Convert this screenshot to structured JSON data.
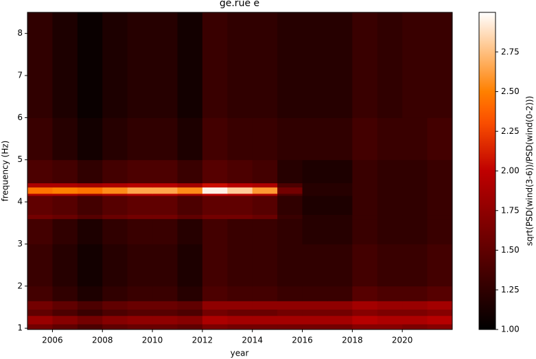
{
  "chart_data": {
    "type": "heatmap",
    "title": "ge.rue e",
    "x_label": "year",
    "y_label": "frequency (Hz)",
    "colorbar_label": "sqrt(PSD(wind(3-6))/PSD(wind(0-2)))",
    "colormap": "gist_heat",
    "x": [
      2005,
      2006,
      2007,
      2008,
      2009,
      2010,
      2011,
      2012,
      2013,
      2014,
      2015,
      2016,
      2017,
      2018,
      2019,
      2020,
      2021,
      2022
    ],
    "y": [
      0.97,
      1.1,
      1.3,
      1.45,
      1.65,
      2.0,
      3.0,
      3.6,
      3.7,
      4.15,
      4.2,
      4.35,
      4.45,
      5.0,
      6.0,
      8.5
    ],
    "z": [
      [
        1.6,
        1.5,
        1.4,
        1.5,
        1.55,
        1.55,
        1.5,
        1.65,
        1.6,
        1.6,
        1.6,
        1.6,
        1.6,
        1.7,
        1.7,
        1.65,
        1.7
      ],
      [
        1.8,
        1.7,
        1.6,
        1.7,
        1.75,
        1.75,
        1.7,
        1.9,
        1.85,
        1.85,
        1.85,
        1.85,
        1.85,
        1.95,
        1.9,
        1.9,
        1.95
      ],
      [
        1.5,
        1.4,
        1.3,
        1.4,
        1.45,
        1.45,
        1.4,
        1.6,
        1.55,
        1.55,
        1.6,
        1.6,
        1.6,
        1.7,
        1.65,
        1.65,
        1.7
      ],
      [
        1.6,
        1.5,
        1.4,
        1.5,
        1.55,
        1.55,
        1.5,
        1.75,
        1.75,
        1.75,
        1.75,
        1.75,
        1.75,
        1.85,
        1.8,
        1.8,
        1.85
      ],
      [
        1.35,
        1.25,
        1.15,
        1.25,
        1.3,
        1.3,
        1.2,
        1.4,
        1.35,
        1.35,
        1.3,
        1.3,
        1.3,
        1.45,
        1.4,
        1.4,
        1.45
      ],
      [
        1.3,
        1.2,
        1.1,
        1.2,
        1.25,
        1.25,
        1.15,
        1.35,
        1.3,
        1.3,
        1.25,
        1.25,
        1.25,
        1.35,
        1.3,
        1.3,
        1.35
      ],
      [
        1.35,
        1.25,
        1.15,
        1.25,
        1.3,
        1.3,
        1.2,
        1.35,
        1.3,
        1.3,
        1.25,
        1.2,
        1.2,
        1.3,
        1.25,
        1.25,
        1.3
      ],
      [
        1.6,
        1.55,
        1.45,
        1.55,
        1.6,
        1.6,
        1.5,
        1.6,
        1.6,
        1.55,
        1.3,
        1.2,
        1.2,
        1.3,
        1.25,
        1.25,
        1.3
      ],
      [
        1.5,
        1.45,
        1.35,
        1.45,
        1.5,
        1.5,
        1.4,
        1.5,
        1.5,
        1.45,
        1.25,
        1.15,
        1.15,
        1.3,
        1.25,
        1.25,
        1.3
      ],
      [
        1.9,
        1.9,
        1.8,
        1.9,
        1.95,
        1.95,
        1.85,
        2.0,
        1.95,
        1.9,
        1.4,
        1.2,
        1.2,
        1.3,
        1.25,
        1.25,
        1.3
      ],
      [
        2.45,
        2.5,
        2.45,
        2.55,
        2.65,
        2.65,
        2.55,
        2.95,
        2.8,
        2.6,
        1.6,
        1.2,
        1.2,
        1.3,
        1.25,
        1.25,
        1.3
      ],
      [
        1.9,
        1.9,
        1.85,
        1.9,
        1.95,
        1.95,
        1.85,
        2.05,
        1.95,
        1.9,
        1.4,
        1.2,
        1.2,
        1.3,
        1.25,
        1.25,
        1.3
      ],
      [
        1.4,
        1.35,
        1.25,
        1.35,
        1.4,
        1.4,
        1.3,
        1.45,
        1.4,
        1.35,
        1.2,
        1.15,
        1.15,
        1.3,
        1.25,
        1.25,
        1.3
      ],
      [
        1.3,
        1.2,
        1.1,
        1.2,
        1.25,
        1.25,
        1.15,
        1.35,
        1.3,
        1.3,
        1.25,
        1.25,
        1.25,
        1.35,
        1.3,
        1.3,
        1.35
      ],
      [
        1.25,
        1.15,
        1.05,
        1.15,
        1.2,
        1.2,
        1.1,
        1.3,
        1.25,
        1.25,
        1.2,
        1.2,
        1.2,
        1.3,
        1.25,
        1.3,
        1.3
      ]
    ],
    "xlim": [
      2005,
      2022
    ],
    "ylim": [
      0.97,
      8.5
    ],
    "clim": [
      1,
      3
    ],
    "xticks": [
      2006,
      2008,
      2010,
      2012,
      2014,
      2016,
      2018,
      2020
    ],
    "yticks": [
      1,
      2,
      3,
      4,
      5,
      6,
      7,
      8
    ],
    "cticks": [
      {
        "value": 1,
        "label": "1.00"
      },
      {
        "value": 1.25,
        "label": "1.25"
      },
      {
        "value": 1.5,
        "label": "1.50"
      },
      {
        "value": 1.75,
        "label": "1.75"
      },
      {
        "value": 2,
        "label": "2.00"
      },
      {
        "value": 2.25,
        "label": "2.25"
      },
      {
        "value": 2.5,
        "label": "2.50"
      },
      {
        "value": 2.75,
        "label": "2.75"
      }
    ]
  }
}
